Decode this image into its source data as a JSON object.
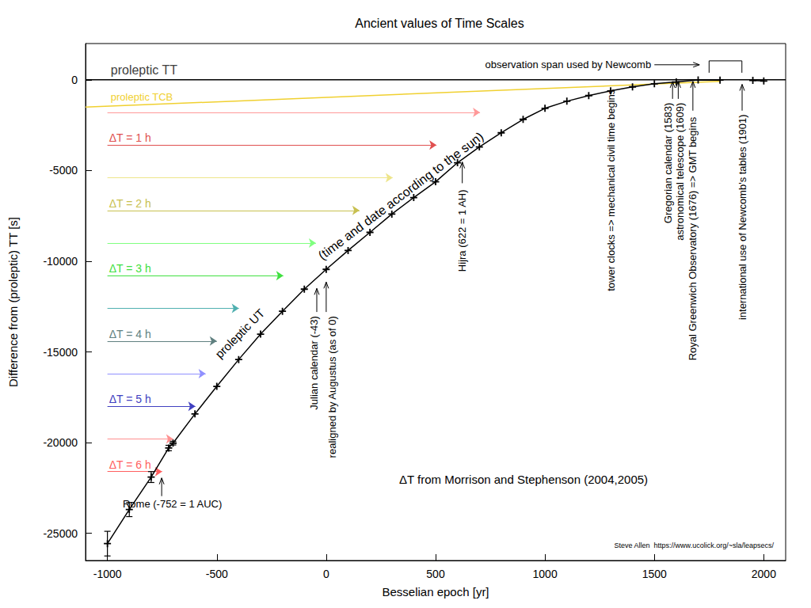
{
  "chart_data": {
    "type": "line",
    "title": "Ancient values of Time Scales",
    "x_label": "Besselian epoch [yr]",
    "y_label": "Difference from (proleptic) TT [s]",
    "xlim": [
      -1100,
      2100
    ],
    "xticks": [
      -1000,
      -500,
      0,
      500,
      1000,
      1500,
      2000
    ],
    "ylim": [
      -26500,
      2000
    ],
    "yticks": [
      -25000,
      -20000,
      -15000,
      -10000,
      -5000,
      0
    ],
    "grid": false,
    "series": [
      {
        "name": "proleptic TT",
        "color": "#000000",
        "marker": "none",
        "line_style": "solid",
        "x": [
          -1100,
          2100
        ],
        "values": [
          0,
          0
        ]
      },
      {
        "name": "proleptic TCB",
        "color": "#f0d030",
        "marker": "none",
        "line_style": "solid",
        "x": [
          -1100,
          1800
        ],
        "values": [
          -1505,
          -87
        ]
      },
      {
        "name": "proleptic UT",
        "color": "#000000",
        "marker": "plus",
        "line_style": "solid",
        "x": [
          -1000,
          -900,
          -800,
          -720,
          -700,
          -600,
          -500,
          -400,
          -300,
          -200,
          -100,
          0,
          100,
          200,
          300,
          400,
          500,
          600,
          700,
          800,
          900,
          1000,
          1100,
          1200,
          1300,
          1400,
          1500,
          1600,
          1700,
          1800,
          1850,
          1950,
          2000
        ],
        "values": [
          -25570,
          -23690,
          -21900,
          -20300,
          -20030,
          -18420,
          -16900,
          -15420,
          -14020,
          -12760,
          -11540,
          -10450,
          -9410,
          -8410,
          -7400,
          -6490,
          -5620,
          -4570,
          -3700,
          -2920,
          -2180,
          -1570,
          -1180,
          -870,
          -610,
          -390,
          -220,
          -120,
          -10,
          -14,
          null,
          -29,
          -64
        ],
        "errors": [
          680,
          390,
          300,
          150,
          100,
          null,
          null,
          null,
          null,
          null,
          null,
          null,
          null,
          null,
          null,
          null,
          null,
          null,
          null,
          null,
          null,
          null,
          null,
          null,
          null,
          null,
          null,
          null,
          null,
          null,
          null,
          null,
          null
        ]
      }
    ],
    "delta_t_arrows": {
      "x_start": -1000,
      "arrows": [
        {
          "y": -1800,
          "x_end": 703,
          "color": "#ff9999"
        },
        {
          "y": -3600,
          "x_end": 504,
          "color": "#e05050",
          "label": "ΔT = 1 h"
        },
        {
          "y": -5400,
          "x_end": 304,
          "color": "#eee58a"
        },
        {
          "y": -7200,
          "x_end": 152,
          "color": "#c8c050",
          "label": "ΔT = 2 h"
        },
        {
          "y": -9000,
          "x_end": -47,
          "color": "#80ff80"
        },
        {
          "y": -10800,
          "x_end": -196,
          "color": "#40e040",
          "label": "ΔT = 3 h"
        },
        {
          "y": -12600,
          "x_end": -399,
          "color": "#50b0b0"
        },
        {
          "y": -14400,
          "x_end": -500,
          "color": "#608080",
          "label": "ΔT = 4 h"
        },
        {
          "y": -16200,
          "x_end": -551,
          "color": "#9090ff"
        },
        {
          "y": -18000,
          "x_end": -598,
          "color": "#4040c0",
          "label": "ΔT = 5 h"
        },
        {
          "y": -19800,
          "x_end": -699,
          "color": "#ff9090"
        },
        {
          "y": -21600,
          "x_end": -750,
          "color": "#ff6060",
          "label": "ΔT = 6 h"
        }
      ]
    },
    "annotations": [
      {
        "text": "Rome (-752 = 1 AUC)",
        "x": -752
      },
      {
        "text": "Julian calendar (-43)",
        "x": -43
      },
      {
        "text": "realigned by Augustus (as of 0)",
        "x": 0
      },
      {
        "text": "Hijra (622 = 1 AH)",
        "x": 622
      },
      {
        "text": "tower clocks => mechanical civil time begins",
        "x": 1300
      },
      {
        "text": "Gregorian calendar (1583)",
        "x": 1583
      },
      {
        "text": "astronomical telescope (1609)",
        "x": 1609
      },
      {
        "text": "Royal Greenwich Observatory (1676) => GMT begins",
        "x": 1676
      },
      {
        "text": "international use of Newcomb's tables (1901)",
        "x": 1901
      }
    ],
    "bracket": {
      "text": "observation span used by Newcomb",
      "span": [
        1750,
        1900
      ]
    },
    "notes": [
      "(time and date according to the sun)",
      "ΔT from Morrison and Stephenson (2004,2005)",
      "Steve Allen  https://www.ucolick.org/~sla/leapsecs/"
    ]
  }
}
